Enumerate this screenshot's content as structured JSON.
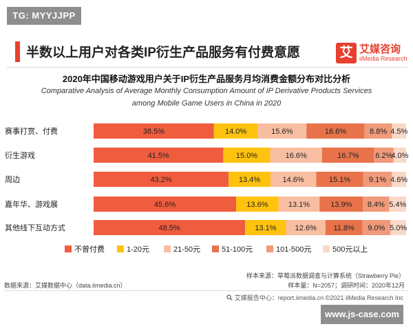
{
  "watermark_top": "TG: MYYJJPP",
  "header": {
    "title": "半数以上用户对各类IP衍生产品服务有付费意愿",
    "logo_glyph": "艾",
    "logo_cn": "艾媒咨询",
    "logo_en": "iiMedia Research"
  },
  "chart_data": {
    "type": "bar",
    "orientation": "horizontal",
    "stacked": true,
    "title": "2020年中国移动游戏用户关于IP衍生产品服务月均消费金额分布对比分析",
    "subtitle_lines": [
      "Comparative Analysis of Average Monthly Consumption Amount of IP Derivative Products  Services",
      "among Mobile Game Users in China in 2020"
    ],
    "categories": [
      "赛事打赏、付费",
      "衍生游戏",
      "周边",
      "嘉年华、游戏展",
      "其他线下互动方式"
    ],
    "series": [
      {
        "name": "不曾付费",
        "color": "#f05c3e",
        "values": [
          38.5,
          41.5,
          43.2,
          45.6,
          48.5
        ]
      },
      {
        "name": "1-20元",
        "color": "#ffc20e",
        "values": [
          14.0,
          15.0,
          13.4,
          13.6,
          13.1
        ]
      },
      {
        "name": "21-50元",
        "color": "#f8bea2",
        "values": [
          15.6,
          16.6,
          14.6,
          13.1,
          12.6
        ]
      },
      {
        "name": "51-100元",
        "color": "#e8734a",
        "values": [
          18.6,
          16.7,
          15.1,
          13.9,
          11.8
        ]
      },
      {
        "name": "101-500元",
        "color": "#f09a7a",
        "values": [
          8.8,
          6.2,
          9.1,
          8.4,
          9.0
        ]
      },
      {
        "name": "500元以上",
        "color": "#fbd9c8",
        "values": [
          4.5,
          4.0,
          4.6,
          5.4,
          5.0
        ]
      }
    ],
    "value_suffix": "%",
    "xlim": [
      0,
      100
    ],
    "legend_position": "bottom",
    "grid": false
  },
  "source": {
    "sample_source": "样本来源：草莓派数据调查与计算系统（Strawberry Pie）",
    "sample_size": "样本量：N=2057；调研时间：2020年12月",
    "data_source": "数据来源：艾媒数据中心（data.iimedia.cn）",
    "footer": "艾媒报告中心：report.iimedia.cn ©2021  iiMedia Research Inc",
    "footer_icon": "search-icon"
  },
  "watermark_bottom": "www.js-case.com"
}
